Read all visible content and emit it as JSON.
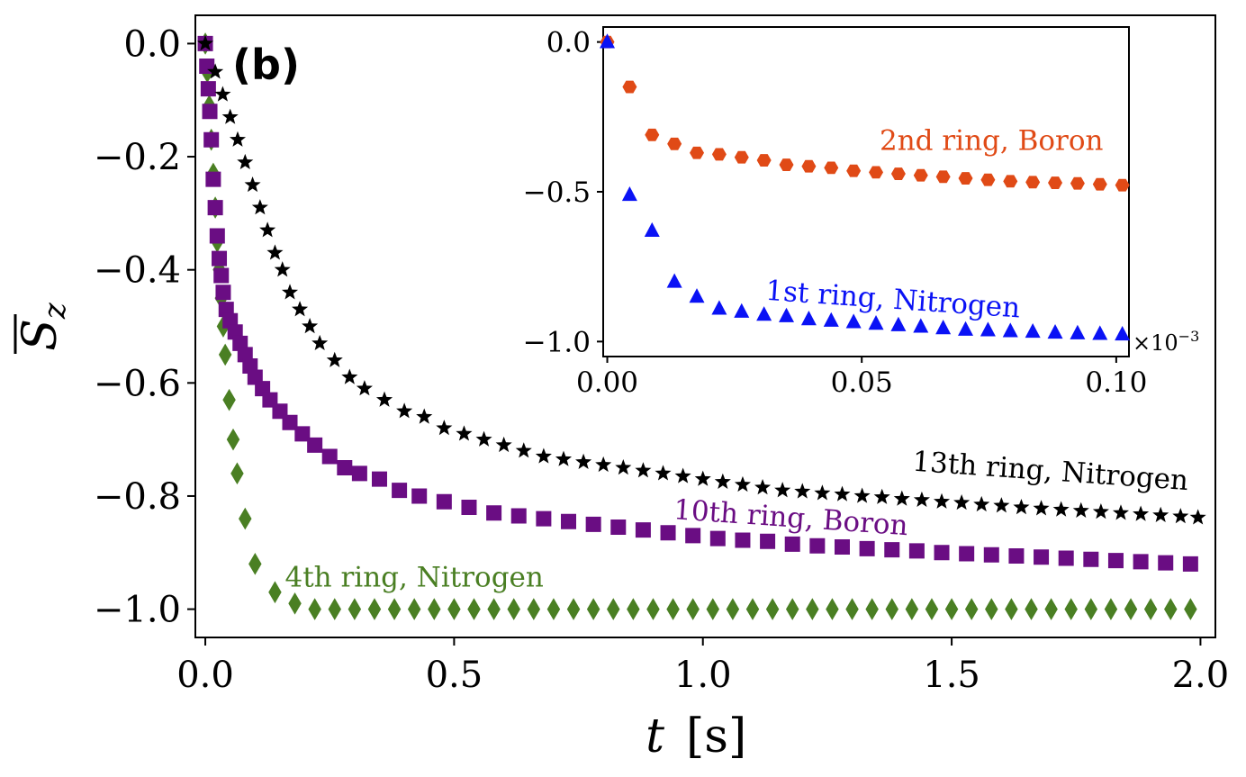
{
  "panel_label": "(b)",
  "chart_data": [
    {
      "name": "main",
      "type": "scatter",
      "xlabel": "t",
      "xlabel_unit": "[s]",
      "ylabel": "S_z (overline)",
      "xlim": [
        -0.02,
        2.03
      ],
      "ylim": [
        -1.05,
        0.05
      ],
      "xticks": [
        0.0,
        0.5,
        1.0,
        1.5,
        2.0
      ],
      "xtick_labels": [
        "0.0",
        "0.5",
        "1.0",
        "1.5",
        "2.0"
      ],
      "yticks": [
        0.0,
        -0.2,
        -0.4,
        -0.6,
        -0.8,
        -1.0
      ],
      "ytick_labels": [
        "0.0",
        "−0.2",
        "−0.4",
        "−0.6",
        "−0.8",
        "−1.0"
      ],
      "grid": false,
      "series": [
        {
          "name": "4th ring, Nitrogen",
          "color": "#4a7f23",
          "marker": "diamond",
          "x": [
            0.0,
            0.004,
            0.008,
            0.012,
            0.016,
            0.02,
            0.024,
            0.028,
            0.032,
            0.036,
            0.04,
            0.048,
            0.056,
            0.064,
            0.08,
            0.1,
            0.14,
            0.18,
            0.22,
            0.26,
            0.3,
            0.34,
            0.38,
            0.42,
            0.46,
            0.5,
            0.54,
            0.58,
            0.62,
            0.66,
            0.7,
            0.74,
            0.78,
            0.82,
            0.86,
            0.9,
            0.94,
            0.98,
            1.02,
            1.06,
            1.1,
            1.14,
            1.18,
            1.22,
            1.26,
            1.3,
            1.34,
            1.38,
            1.42,
            1.46,
            1.5,
            1.54,
            1.58,
            1.62,
            1.66,
            1.7,
            1.74,
            1.78,
            1.82,
            1.86,
            1.9,
            1.94,
            1.98
          ],
          "y": [
            0.0,
            -0.05,
            -0.11,
            -0.17,
            -0.23,
            -0.29,
            -0.35,
            -0.4,
            -0.45,
            -0.5,
            -0.55,
            -0.63,
            -0.7,
            -0.76,
            -0.84,
            -0.92,
            -0.97,
            -0.99,
            -1.0,
            -1.0,
            -1.0,
            -1.0,
            -1.0,
            -1.0,
            -1.0,
            -1.0,
            -1.0,
            -1.0,
            -1.0,
            -1.0,
            -1.0,
            -1.0,
            -1.0,
            -1.0,
            -1.0,
            -1.0,
            -1.0,
            -1.0,
            -1.0,
            -1.0,
            -1.0,
            -1.0,
            -1.0,
            -1.0,
            -1.0,
            -1.0,
            -1.0,
            -1.0,
            -1.0,
            -1.0,
            -1.0,
            -1.0,
            -1.0,
            -1.0,
            -1.0,
            -1.0,
            -1.0,
            -1.0,
            -1.0,
            -1.0,
            -1.0,
            -1.0,
            -1.0
          ]
        },
        {
          "name": "10th ring, Boron",
          "color": "#6a0d83",
          "marker": "square",
          "x": [
            0.0,
            0.003,
            0.006,
            0.009,
            0.012,
            0.016,
            0.02,
            0.024,
            0.028,
            0.032,
            0.036,
            0.042,
            0.05,
            0.06,
            0.07,
            0.08,
            0.09,
            0.1,
            0.115,
            0.13,
            0.15,
            0.17,
            0.195,
            0.22,
            0.25,
            0.28,
            0.31,
            0.35,
            0.39,
            0.43,
            0.48,
            0.53,
            0.58,
            0.63,
            0.68,
            0.73,
            0.78,
            0.83,
            0.88,
            0.93,
            0.98,
            1.03,
            1.08,
            1.13,
            1.18,
            1.23,
            1.28,
            1.33,
            1.38,
            1.43,
            1.48,
            1.53,
            1.58,
            1.63,
            1.68,
            1.73,
            1.78,
            1.83,
            1.88,
            1.93,
            1.98
          ],
          "y": [
            0.0,
            -0.04,
            -0.08,
            -0.12,
            -0.17,
            -0.24,
            -0.29,
            -0.34,
            -0.38,
            -0.41,
            -0.44,
            -0.47,
            -0.49,
            -0.51,
            -0.53,
            -0.55,
            -0.57,
            -0.59,
            -0.61,
            -0.63,
            -0.65,
            -0.67,
            -0.69,
            -0.71,
            -0.73,
            -0.75,
            -0.76,
            -0.77,
            -0.79,
            -0.8,
            -0.81,
            -0.82,
            -0.83,
            -0.835,
            -0.84,
            -0.845,
            -0.85,
            -0.855,
            -0.86,
            -0.865,
            -0.87,
            -0.875,
            -0.878,
            -0.88,
            -0.885,
            -0.888,
            -0.89,
            -0.893,
            -0.895,
            -0.897,
            -0.9,
            -0.902,
            -0.904,
            -0.906,
            -0.908,
            -0.91,
            -0.912,
            -0.914,
            -0.916,
            -0.918,
            -0.92
          ]
        },
        {
          "name": "13th ring, Nitrogen",
          "color": "#000000",
          "marker": "star",
          "x": [
            0.0,
            0.02,
            0.035,
            0.05,
            0.065,
            0.08,
            0.095,
            0.11,
            0.125,
            0.14,
            0.155,
            0.17,
            0.19,
            0.21,
            0.23,
            0.26,
            0.29,
            0.32,
            0.36,
            0.4,
            0.44,
            0.48,
            0.52,
            0.56,
            0.6,
            0.64,
            0.68,
            0.72,
            0.76,
            0.8,
            0.84,
            0.88,
            0.92,
            0.96,
            1.0,
            1.04,
            1.08,
            1.12,
            1.16,
            1.2,
            1.24,
            1.28,
            1.32,
            1.36,
            1.4,
            1.44,
            1.48,
            1.52,
            1.56,
            1.6,
            1.64,
            1.68,
            1.72,
            1.76,
            1.8,
            1.84,
            1.88,
            1.92,
            1.96,
            1.995
          ],
          "y": [
            0.0,
            -0.05,
            -0.09,
            -0.13,
            -0.17,
            -0.21,
            -0.25,
            -0.29,
            -0.33,
            -0.37,
            -0.4,
            -0.44,
            -0.47,
            -0.5,
            -0.53,
            -0.56,
            -0.59,
            -0.61,
            -0.63,
            -0.65,
            -0.66,
            -0.68,
            -0.69,
            -0.7,
            -0.71,
            -0.72,
            -0.73,
            -0.735,
            -0.74,
            -0.745,
            -0.75,
            -0.755,
            -0.76,
            -0.765,
            -0.77,
            -0.775,
            -0.78,
            -0.785,
            -0.79,
            -0.792,
            -0.795,
            -0.797,
            -0.8,
            -0.802,
            -0.805,
            -0.807,
            -0.81,
            -0.812,
            -0.815,
            -0.817,
            -0.82,
            -0.822,
            -0.824,
            -0.826,
            -0.828,
            -0.83,
            -0.832,
            -0.834,
            -0.836,
            -0.838
          ]
        }
      ],
      "annotations": [
        {
          "text": "4th ring, Nitrogen",
          "series": "4th ring, Nitrogen",
          "x": 0.16,
          "y": -0.96
        },
        {
          "text": "10th ring, Boron",
          "series": "10th ring, Boron",
          "x": 0.94,
          "y": -0.84,
          "rotation": 4
        },
        {
          "text": "13th ring, Nitrogen",
          "series": "13th ring, Nitrogen",
          "x": 1.42,
          "y": -0.755,
          "rotation": 4
        }
      ]
    },
    {
      "name": "inset",
      "type": "scatter",
      "xlim": [
        -0.0008,
        0.1025
      ],
      "ylim": [
        -1.05,
        0.05
      ],
      "x_scale_note": "×10⁻³",
      "x_exponent_label": "×10",
      "x_exponent_power": "−3",
      "xticks": [
        0.0,
        0.05,
        0.1
      ],
      "xtick_labels": [
        "0.00",
        "0.05",
        "0.10"
      ],
      "yticks": [
        0.0,
        -0.5,
        -1.0
      ],
      "ytick_labels": [
        "0.0",
        "−0.5",
        "−1.0"
      ],
      "grid": false,
      "series": [
        {
          "name": "2nd ring, Boron",
          "color": "#e04a16",
          "marker": "hexagon",
          "x": [
            0.0,
            0.0044,
            0.0088,
            0.0132,
            0.0176,
            0.022,
            0.0264,
            0.0308,
            0.0352,
            0.0396,
            0.044,
            0.0484,
            0.0528,
            0.0572,
            0.0616,
            0.066,
            0.0704,
            0.0748,
            0.0792,
            0.0836,
            0.088,
            0.0924,
            0.0968,
            0.1012
          ],
          "y": [
            0.0,
            -0.15,
            -0.31,
            -0.34,
            -0.37,
            -0.375,
            -0.385,
            -0.395,
            -0.41,
            -0.415,
            -0.42,
            -0.43,
            -0.435,
            -0.44,
            -0.445,
            -0.45,
            -0.455,
            -0.46,
            -0.465,
            -0.468,
            -0.47,
            -0.472,
            -0.475,
            -0.478
          ]
        },
        {
          "name": "1st ring, Nitrogen",
          "color": "#0a12f5",
          "marker": "triangle",
          "x": [
            0.0,
            0.0044,
            0.0088,
            0.0132,
            0.0176,
            0.022,
            0.0264,
            0.0308,
            0.0352,
            0.0396,
            0.044,
            0.0484,
            0.0528,
            0.0572,
            0.0616,
            0.066,
            0.0704,
            0.0748,
            0.0792,
            0.0836,
            0.088,
            0.0924,
            0.0968,
            0.1012
          ],
          "y": [
            0.0,
            -0.51,
            -0.63,
            -0.8,
            -0.85,
            -0.89,
            -0.9,
            -0.91,
            -0.915,
            -0.925,
            -0.93,
            -0.935,
            -0.94,
            -0.945,
            -0.95,
            -0.955,
            -0.96,
            -0.962,
            -0.965,
            -0.967,
            -0.97,
            -0.972,
            -0.974,
            -0.976
          ]
        }
      ],
      "annotations": [
        {
          "text": "2nd ring, Boron",
          "series": "2nd ring, Boron",
          "x": 0.0535,
          "y": -0.36
        },
        {
          "text": "1st ring, Nitrogen",
          "series": "1st ring, Nitrogen",
          "x": 0.031,
          "y": -0.86,
          "rotation": 4
        }
      ]
    }
  ]
}
